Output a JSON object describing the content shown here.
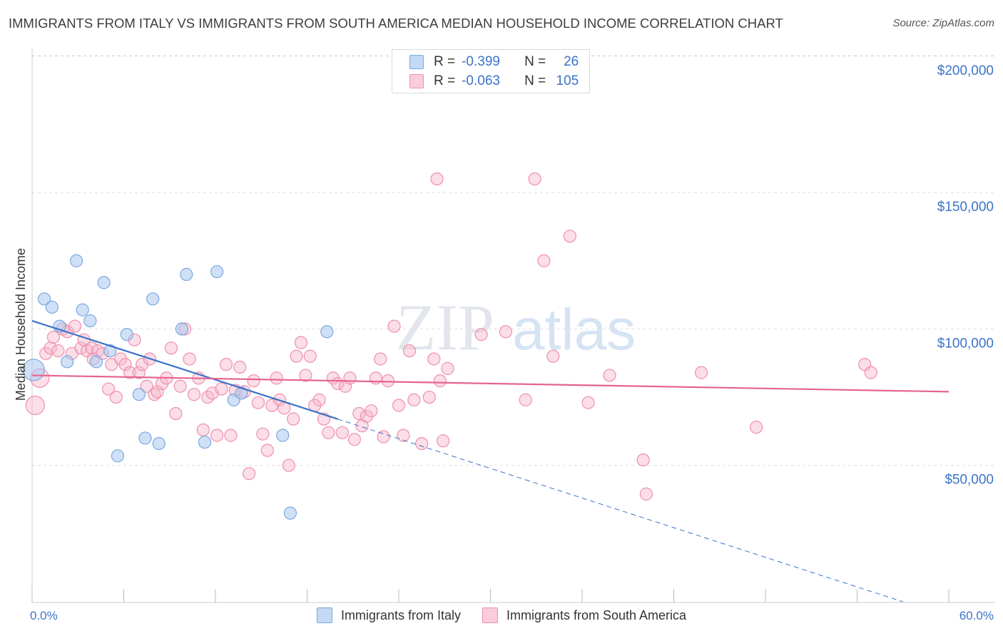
{
  "title": "IMMIGRANTS FROM ITALY VS IMMIGRANTS FROM SOUTH AMERICA MEDIAN HOUSEHOLD INCOME CORRELATION CHART",
  "source": "Source: ZipAtlas.com",
  "watermark": "ZIPatlas",
  "colors": {
    "italy_fill": "#a9c8f0",
    "italy_stroke": "#7aa7e0",
    "italy_line": "#3b73c9",
    "sa_fill": "#f7b6c9",
    "sa_stroke": "#ee90ad",
    "sa_line": "#e5648f",
    "tick_text": "#3b73c9",
    "grid": "#dddddd"
  },
  "legend": {
    "rows": [
      {
        "r_label": "R =",
        "r_value": "-0.399",
        "n_label": "N =",
        "n_value": "26"
      },
      {
        "r_label": "R =",
        "r_value": "-0.063",
        "n_label": "N =",
        "n_value": "105"
      }
    ]
  },
  "bottom_legend": [
    "Immigrants from Italy",
    "Immigrants from South America"
  ],
  "chart_data": {
    "type": "scatter",
    "title": "IMMIGRANTS FROM ITALY VS IMMIGRANTS FROM SOUTH AMERICA MEDIAN HOUSEHOLD INCOME CORRELATION CHART",
    "xlabel": "",
    "ylabel": "Median Household Income",
    "xlim": [
      0,
      60
    ],
    "ylim": [
      0,
      210000
    ],
    "x_tick_labels": [
      "0.0%",
      "60.0%"
    ],
    "y_ticks": [
      50000,
      100000,
      150000,
      200000
    ],
    "y_tick_labels": [
      "$50,000",
      "$100,000",
      "$150,000",
      "$200,000"
    ],
    "grid": "horizontal dashed",
    "legend_position": "top-center",
    "series": [
      {
        "name": "Immigrants from Italy",
        "r": -0.399,
        "n": 26,
        "trend": {
          "x0": 0,
          "y0": 103000,
          "x1": 20,
          "y1": 67000,
          "dashed_to_x": 57,
          "dashed_to_y": 0
        },
        "points": [
          [
            0.1,
            85000
          ],
          [
            0.8,
            111000
          ],
          [
            1.3,
            108000
          ],
          [
            1.8,
            101000
          ],
          [
            2.3,
            88000
          ],
          [
            3.3,
            107000
          ],
          [
            3.8,
            103000
          ],
          [
            2.9,
            125000
          ],
          [
            4.2,
            88000
          ],
          [
            4.7,
            117000
          ],
          [
            5.1,
            92000
          ],
          [
            5.6,
            53500
          ],
          [
            6.2,
            98000
          ],
          [
            7.0,
            76000
          ],
          [
            7.4,
            60000
          ],
          [
            7.9,
            111000
          ],
          [
            8.3,
            58000
          ],
          [
            9.8,
            100000
          ],
          [
            10.1,
            120000
          ],
          [
            11.3,
            58500
          ],
          [
            12.1,
            121000
          ],
          [
            13.2,
            74000
          ],
          [
            13.7,
            76500
          ],
          [
            16.4,
            61000
          ],
          [
            16.9,
            32500
          ],
          [
            19.3,
            99000
          ]
        ]
      },
      {
        "name": "Immigrants from South America",
        "r": -0.063,
        "n": 105,
        "trend": {
          "x0": 0,
          "y0": 83000,
          "x1": 60,
          "y1": 77000
        },
        "points": [
          [
            0.2,
            72000
          ],
          [
            0.5,
            82000
          ],
          [
            0.9,
            91000
          ],
          [
            1.2,
            93000
          ],
          [
            1.4,
            97000
          ],
          [
            1.7,
            92000
          ],
          [
            2.0,
            100000
          ],
          [
            2.3,
            99000
          ],
          [
            2.6,
            91000
          ],
          [
            2.8,
            101000
          ],
          [
            3.2,
            93000
          ],
          [
            3.4,
            96000
          ],
          [
            3.6,
            92000
          ],
          [
            3.9,
            93000
          ],
          [
            4.0,
            89000
          ],
          [
            4.3,
            92000
          ],
          [
            4.6,
            91000
          ],
          [
            5.0,
            78000
          ],
          [
            5.2,
            87000
          ],
          [
            5.5,
            75000
          ],
          [
            5.8,
            89000
          ],
          [
            6.1,
            87000
          ],
          [
            6.4,
            84000
          ],
          [
            6.7,
            96000
          ],
          [
            7.0,
            84000
          ],
          [
            7.2,
            87000
          ],
          [
            7.5,
            79000
          ],
          [
            7.7,
            89000
          ],
          [
            8.0,
            76000
          ],
          [
            8.2,
            77000
          ],
          [
            8.5,
            80000
          ],
          [
            8.8,
            82000
          ],
          [
            9.1,
            93000
          ],
          [
            9.4,
            69000
          ],
          [
            9.7,
            79000
          ],
          [
            10.0,
            100000
          ],
          [
            10.3,
            89000
          ],
          [
            10.6,
            76000
          ],
          [
            10.9,
            82000
          ],
          [
            11.2,
            63000
          ],
          [
            11.5,
            75000
          ],
          [
            11.8,
            76500
          ],
          [
            12.1,
            61000
          ],
          [
            12.4,
            78000
          ],
          [
            12.7,
            87000
          ],
          [
            13.0,
            61000
          ],
          [
            13.3,
            77500
          ],
          [
            13.6,
            86000
          ],
          [
            13.9,
            77000
          ],
          [
            14.2,
            47000
          ],
          [
            14.5,
            81000
          ],
          [
            14.8,
            73000
          ],
          [
            15.1,
            61500
          ],
          [
            15.4,
            55500
          ],
          [
            15.7,
            72000
          ],
          [
            16.0,
            82000
          ],
          [
            16.2,
            74000
          ],
          [
            16.5,
            71000
          ],
          [
            16.8,
            50000
          ],
          [
            17.1,
            67000
          ],
          [
            17.3,
            90000
          ],
          [
            17.6,
            95000
          ],
          [
            17.9,
            83000
          ],
          [
            18.2,
            90000
          ],
          [
            18.5,
            72000
          ],
          [
            18.8,
            74000
          ],
          [
            19.1,
            67000
          ],
          [
            19.4,
            62000
          ],
          [
            19.7,
            82000
          ],
          [
            20.0,
            80000
          ],
          [
            20.3,
            62000
          ],
          [
            20.5,
            79000
          ],
          [
            20.8,
            82000
          ],
          [
            21.1,
            59500
          ],
          [
            21.4,
            69000
          ],
          [
            21.6,
            64500
          ],
          [
            21.9,
            68000
          ],
          [
            22.2,
            70000
          ],
          [
            22.5,
            82000
          ],
          [
            22.8,
            89000
          ],
          [
            23.0,
            60500
          ],
          [
            23.3,
            81000
          ],
          [
            23.7,
            101000
          ],
          [
            24.0,
            72000
          ],
          [
            24.3,
            61000
          ],
          [
            24.7,
            92000
          ],
          [
            25.0,
            74000
          ],
          [
            25.5,
            58000
          ],
          [
            26.0,
            75000
          ],
          [
            26.3,
            89000
          ],
          [
            26.7,
            81000
          ],
          [
            26.9,
            59000
          ],
          [
            27.2,
            85500
          ],
          [
            29.4,
            98000
          ],
          [
            31.0,
            99000
          ],
          [
            26.5,
            155000
          ],
          [
            32.3,
            74000
          ],
          [
            32.9,
            155000
          ],
          [
            33.5,
            125000
          ],
          [
            34.1,
            90000
          ],
          [
            35.2,
            134000
          ],
          [
            36.4,
            73000
          ],
          [
            37.8,
            83000
          ],
          [
            40.0,
            52000
          ],
          [
            40.2,
            39500
          ],
          [
            43.8,
            84000
          ],
          [
            47.4,
            64000
          ],
          [
            54.5,
            87000
          ],
          [
            54.9,
            84000
          ]
        ]
      }
    ]
  }
}
